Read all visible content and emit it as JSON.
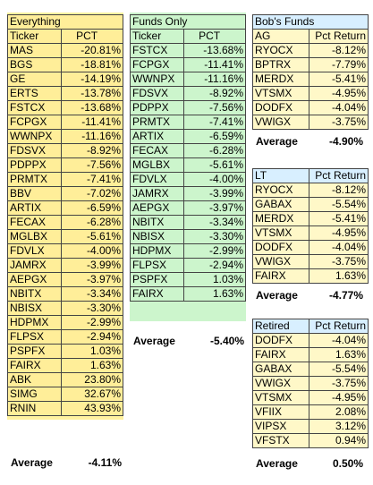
{
  "everything": {
    "title": "Everything",
    "headers": [
      "Ticker",
      "PCT"
    ],
    "rows": [
      [
        "MAS",
        "-20.81%"
      ],
      [
        "BGS",
        "-18.81%"
      ],
      [
        "GE",
        "-14.19%"
      ],
      [
        "ERTS",
        "-13.78%"
      ],
      [
        "FSTCX",
        "-13.68%"
      ],
      [
        "FCPGX",
        "-11.41%"
      ],
      [
        "WWNPX",
        "-11.16%"
      ],
      [
        "FDSVX",
        "-8.92%"
      ],
      [
        "PDPPX",
        "-7.56%"
      ],
      [
        "PRMTX",
        "-7.41%"
      ],
      [
        "BBV",
        "-7.02%"
      ],
      [
        "ARTIX",
        "-6.59%"
      ],
      [
        "FECAX",
        "-6.28%"
      ],
      [
        "MGLBX",
        "-5.61%"
      ],
      [
        "FDVLX",
        "-4.00%"
      ],
      [
        "JAMRX",
        "-3.99%"
      ],
      [
        "AEPGX",
        "-3.97%"
      ],
      [
        "NBITX",
        "-3.34%"
      ],
      [
        "NBISX",
        "-3.30%"
      ],
      [
        "HDPMX",
        "-2.99%"
      ],
      [
        "FLPSX",
        "-2.94%"
      ],
      [
        "PSPFX",
        "1.03%"
      ],
      [
        "FAIRX",
        "1.63%"
      ],
      [
        "ABK",
        "23.80%"
      ],
      [
        "SIMG",
        "32.67%"
      ],
      [
        "RNIN",
        "43.93%"
      ]
    ],
    "avg_label": "Average",
    "avg_value": "-4.11%"
  },
  "funds": {
    "title": "Funds Only",
    "headers": [
      "Ticker",
      "PCT"
    ],
    "rows": [
      [
        "FSTCX",
        "-13.68%"
      ],
      [
        "FCPGX",
        "-11.41%"
      ],
      [
        "WWNPX",
        "-11.16%"
      ],
      [
        "FDSVX",
        "-8.92%"
      ],
      [
        "PDPPX",
        "-7.56%"
      ],
      [
        "PRMTX",
        "-7.41%"
      ],
      [
        "ARTIX",
        "-6.59%"
      ],
      [
        "FECAX",
        "-6.28%"
      ],
      [
        "MGLBX",
        "-5.61%"
      ],
      [
        "FDVLX",
        "-4.00%"
      ],
      [
        "JAMRX",
        "-3.99%"
      ],
      [
        "AEPGX",
        "-3.97%"
      ],
      [
        "NBITX",
        "-3.34%"
      ],
      [
        "NBISX",
        "-3.30%"
      ],
      [
        "HDPMX",
        "-2.99%"
      ],
      [
        "FLPSX",
        "-2.94%"
      ],
      [
        "PSPFX",
        "1.03%"
      ],
      [
        "FAIRX",
        "1.63%"
      ]
    ],
    "avg_label": "Average",
    "avg_value": "-5.40%"
  },
  "bob": {
    "title": "Bob's Funds",
    "headers": [
      "AG",
      "Pct Return"
    ],
    "rows": [
      [
        "RYOCX",
        "-8.12%"
      ],
      [
        "BPTRX",
        "-7.79%"
      ],
      [
        "MERDX",
        "-5.41%"
      ],
      [
        "VTSMX",
        "-4.95%"
      ],
      [
        "DODFX",
        "-4.04%"
      ],
      [
        "VWIGX",
        "-3.75%"
      ]
    ],
    "avg_label": "Average",
    "avg_value": "-4.90%"
  },
  "lt": {
    "headers": [
      "LT",
      "Pct Return"
    ],
    "rows": [
      [
        "RYOCX",
        "-8.12%"
      ],
      [
        "GABAX",
        "-5.54%"
      ],
      [
        "MERDX",
        "-5.41%"
      ],
      [
        "VTSMX",
        "-4.95%"
      ],
      [
        "DODFX",
        "-4.04%"
      ],
      [
        "VWIGX",
        "-3.75%"
      ],
      [
        "FAIRX",
        "1.63%"
      ]
    ],
    "avg_label": "Average",
    "avg_value": "-4.77%"
  },
  "retired": {
    "headers": [
      "Retired",
      "Pct Return"
    ],
    "rows": [
      [
        "DODFX",
        "-4.04%"
      ],
      [
        "FAIRX",
        "1.63%"
      ],
      [
        "GABAX",
        "-5.54%"
      ],
      [
        "VWIGX",
        "-3.75%"
      ],
      [
        "VTSMX",
        "-4.95%"
      ],
      [
        "VFIIX",
        "2.08%"
      ],
      [
        "VIPSX",
        "3.12%"
      ],
      [
        "VFSTX",
        "0.94%"
      ]
    ],
    "avg_label": "Average",
    "avg_value": "0.50%"
  }
}
